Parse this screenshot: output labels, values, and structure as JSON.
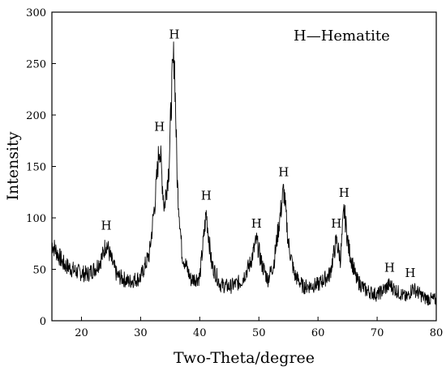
{
  "chart_data": {
    "type": "line",
    "title": "",
    "xlabel": "Two-Theta/degree",
    "ylabel": "Intensity",
    "xlim": [
      15,
      80
    ],
    "ylim": [
      0,
      300
    ],
    "x_ticks": [
      20,
      30,
      40,
      50,
      60,
      70,
      80
    ],
    "y_ticks": [
      0,
      50,
      100,
      150,
      200,
      250,
      300
    ],
    "grid": false,
    "legend_text": "H—Hematite",
    "legend_position": "top-right",
    "line_color": "#000000",
    "series": [
      {
        "name": "",
        "x": [
          15,
          17,
          19,
          21,
          22.5,
          23.5,
          24.2,
          25,
          26,
          28,
          30,
          31.5,
          32.5,
          33.2,
          34,
          34.8,
          35.3,
          35.7,
          36.2,
          37,
          38.5,
          40,
          41.1,
          42,
          43.5,
          45,
          47,
          48.5,
          49.6,
          50.5,
          51.5,
          52.5,
          53.5,
          54.2,
          55,
          56,
          57.5,
          60,
          62,
          63.1,
          63.8,
          64.4,
          65.2,
          66.5,
          68,
          70,
          72.1,
          73.5,
          75,
          76,
          78,
          80
        ],
        "y": [
          75,
          55,
          48,
          45,
          52,
          62,
          76,
          60,
          44,
          38,
          42,
          65,
          120,
          172,
          110,
          150,
          230,
          262,
          135,
          65,
          40,
          42,
          105,
          55,
          35,
          33,
          38,
          55,
          78,
          55,
          40,
          55,
          98,
          128,
          75,
          45,
          33,
          35,
          45,
          78,
          60,
          108,
          70,
          40,
          30,
          25,
          35,
          28,
          22,
          32,
          22,
          20
        ]
      }
    ],
    "annotations": [
      {
        "text": "H",
        "x": 24.2,
        "y": 76
      },
      {
        "text": "H",
        "x": 33.2,
        "y": 172
      },
      {
        "text": "H",
        "x": 35.7,
        "y": 262
      },
      {
        "text": "H",
        "x": 41.1,
        "y": 105
      },
      {
        "text": "H",
        "x": 49.6,
        "y": 78
      },
      {
        "text": "H",
        "x": 54.2,
        "y": 128
      },
      {
        "text": "H",
        "x": 63.1,
        "y": 78
      },
      {
        "text": "H",
        "x": 64.4,
        "y": 108
      },
      {
        "text": "H",
        "x": 72.1,
        "y": 35
      },
      {
        "text": "H",
        "x": 75.6,
        "y": 30
      }
    ]
  }
}
